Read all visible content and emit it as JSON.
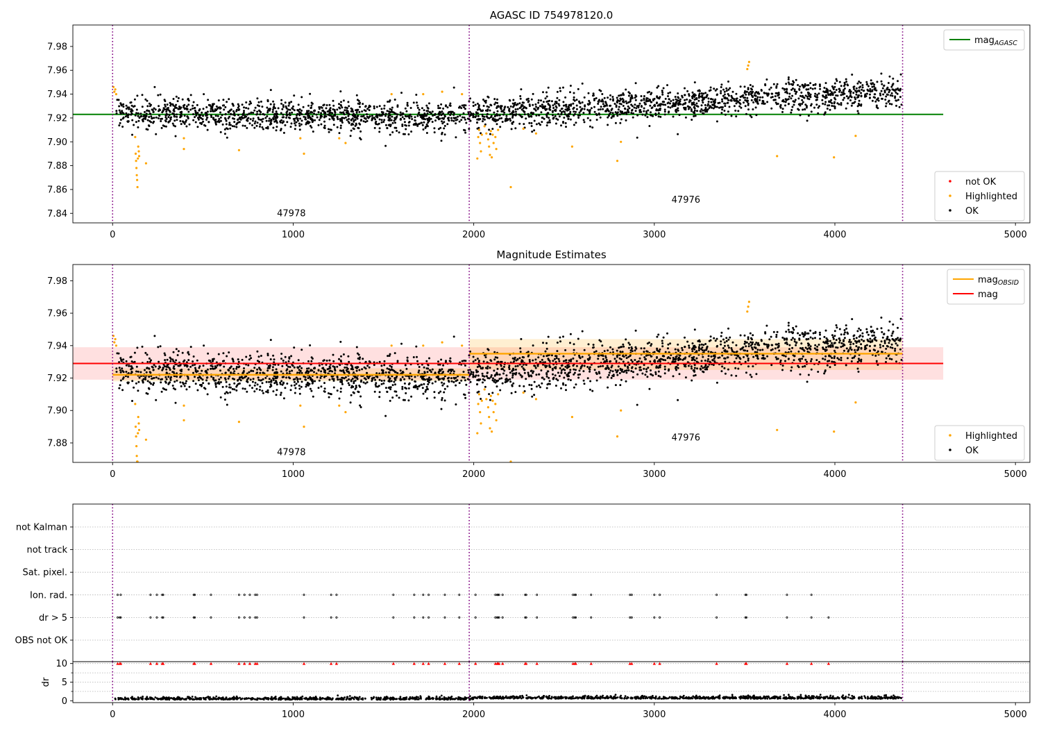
{
  "chart_data": [
    {
      "type": "scatter",
      "title": "AGASC ID 754978120.0",
      "xlim": [
        -220,
        5080
      ],
      "ylim": [
        7.832,
        7.998
      ],
      "xticks": [
        0,
        1000,
        2000,
        3000,
        4000,
        5000
      ],
      "yticks": [
        7.84,
        7.86,
        7.88,
        7.9,
        7.92,
        7.94,
        7.96,
        7.98
      ],
      "ytick_labels": [
        "7.84",
        "7.86",
        "7.88",
        "7.90",
        "7.92",
        "7.94",
        "7.96",
        "7.98"
      ],
      "obsid_boundaries": [
        0,
        1975,
        4375
      ],
      "obsid_labels": [
        {
          "text": "47978",
          "x": 990,
          "y": 7.8375
        },
        {
          "text": "47976",
          "x": 3175,
          "y": 7.849
        }
      ],
      "mag_agasc": 7.923,
      "line_extent": [
        -220,
        4600
      ],
      "trend": [
        {
          "x0": 0,
          "x1": 1975,
          "start": 7.924,
          "end": 7.921
        },
        {
          "x0": 1975,
          "x1": 4375,
          "start": 7.923,
          "end": 7.943
        }
      ],
      "noise": 0.0065,
      "ok_count": 2600,
      "highlighted": [
        [
          5,
          7.946
        ],
        [
          10,
          7.942
        ],
        [
          15,
          7.944
        ],
        [
          20,
          7.94
        ],
        [
          125,
          7.904
        ],
        [
          128,
          7.89
        ],
        [
          130,
          7.884
        ],
        [
          132,
          7.878
        ],
        [
          134,
          7.872
        ],
        [
          136,
          7.868
        ],
        [
          138,
          7.862
        ],
        [
          140,
          7.886
        ],
        [
          142,
          7.896
        ],
        [
          145,
          7.892
        ],
        [
          147,
          7.888
        ],
        [
          185,
          7.882
        ],
        [
          395,
          7.894
        ],
        [
          395,
          7.903
        ],
        [
          700,
          7.893
        ],
        [
          1040,
          7.903
        ],
        [
          1060,
          7.89
        ],
        [
          1255,
          7.903
        ],
        [
          1290,
          7.899
        ],
        [
          1545,
          7.94
        ],
        [
          1720,
          7.94
        ],
        [
          1825,
          7.942
        ],
        [
          1935,
          7.94
        ],
        [
          2020,
          7.886
        ],
        [
          2025,
          7.904
        ],
        [
          2030,
          7.91
        ],
        [
          2035,
          7.899
        ],
        [
          2040,
          7.892
        ],
        [
          2045,
          7.906
        ],
        [
          2060,
          7.913
        ],
        [
          2070,
          7.907
        ],
        [
          2080,
          7.902
        ],
        [
          2085,
          7.896
        ],
        [
          2090,
          7.889
        ],
        [
          2095,
          7.909
        ],
        [
          2100,
          7.887
        ],
        [
          2105,
          7.906
        ],
        [
          2110,
          7.899
        ],
        [
          2120,
          7.904
        ],
        [
          2125,
          7.894
        ],
        [
          2135,
          7.91
        ],
        [
          2205,
          7.862
        ],
        [
          2275,
          7.911
        ],
        [
          2345,
          7.907
        ],
        [
          2545,
          7.896
        ],
        [
          2795,
          7.884
        ],
        [
          2815,
          7.9
        ],
        [
          3515,
          7.961
        ],
        [
          3520,
          7.964
        ],
        [
          3525,
          7.967
        ],
        [
          3680,
          7.888
        ],
        [
          3995,
          7.887
        ],
        [
          4115,
          7.905
        ]
      ],
      "legend": [
        {
          "label": "not OK",
          "color": "#ff0000"
        },
        {
          "label": "Highlighted",
          "color": "#ffa500"
        },
        {
          "label": "OK",
          "color": "#000000"
        }
      ],
      "line_legend": [
        {
          "label": "mag",
          "sub": "AGASC",
          "color": "#008000"
        }
      ]
    },
    {
      "type": "scatter",
      "title": "Magnitude Estimates",
      "xlim": [
        -220,
        5080
      ],
      "ylim": [
        7.868,
        7.99
      ],
      "xticks": [
        0,
        1000,
        2000,
        3000,
        4000,
        5000
      ],
      "yticks": [
        7.88,
        7.9,
        7.92,
        7.94,
        7.96,
        7.98
      ],
      "ytick_labels": [
        "7.88",
        "7.90",
        "7.92",
        "7.94",
        "7.96",
        "7.98"
      ],
      "obsid_boundaries": [
        0,
        1975,
        4375
      ],
      "obsid_labels": [
        {
          "text": "47978",
          "x": 990,
          "y": 7.8725
        },
        {
          "text": "47976",
          "x": 3175,
          "y": 7.8815
        }
      ],
      "mag": 7.929,
      "mag_band": [
        7.919,
        7.939
      ],
      "mag_obsid": [
        {
          "x0": 0,
          "x1": 1975,
          "value": 7.922,
          "band": [
            7.918,
            7.926
          ]
        },
        {
          "x0": 1975,
          "x1": 4375,
          "value": 7.935,
          "band": [
            7.925,
            7.944
          ]
        }
      ],
      "line_extent": [
        -220,
        4600
      ],
      "legend": [
        {
          "label": "Highlighted",
          "color": "#ffa500"
        },
        {
          "label": "OK",
          "color": "#000000"
        }
      ],
      "line_legend": [
        {
          "label": "mag",
          "sub": "OBSID",
          "color": "#ffa500"
        },
        {
          "label": "mag",
          "sub": "",
          "color": "#ff0000"
        }
      ]
    },
    {
      "type": "scatter",
      "title": "",
      "xlim": [
        -220,
        5080
      ],
      "categories": [
        "not Kalman",
        "not track",
        "Sat. pixel.",
        "Ion. rad.",
        "dr > 5",
        "OBS not OK"
      ],
      "obsid_boundaries": [
        0,
        1975,
        4375
      ],
      "flag_times": [
        28,
        45,
        210,
        245,
        275,
        280,
        450,
        455,
        545,
        700,
        730,
        760,
        790,
        800,
        1060,
        1210,
        1240,
        1555,
        1670,
        1720,
        1750,
        1840,
        1920,
        2010,
        2120,
        2130,
        2135,
        2140,
        2160,
        2285,
        2290,
        2350,
        2550,
        2560,
        2565,
        2650,
        2865,
        2875,
        3000,
        3030,
        3345,
        3505,
        3510,
        3735,
        3870
      ]
    },
    {
      "type": "scatter",
      "title": "",
      "ylabel": "dr",
      "xlim": [
        -220,
        5080
      ],
      "ylim": [
        -0.5,
        10.5
      ],
      "xticks": [
        0,
        1000,
        2000,
        3000,
        4000,
        5000
      ],
      "yticks": [
        0,
        5,
        10
      ],
      "obsid_boundaries": [
        0,
        1975,
        4375
      ],
      "clip_value": 10,
      "outlier_times": [
        28,
        40,
        45,
        210,
        245,
        275,
        280,
        450,
        455,
        545,
        700,
        730,
        760,
        790,
        800,
        1060,
        1210,
        1240,
        1555,
        1670,
        1720,
        1750,
        1840,
        1920,
        2010,
        2120,
        2130,
        2135,
        2140,
        2160,
        2285,
        2290,
        2350,
        2550,
        2560,
        2565,
        2650,
        2865,
        2875,
        3000,
        3030,
        3345,
        3505,
        3510,
        3735,
        3870,
        3965
      ]
    }
  ]
}
